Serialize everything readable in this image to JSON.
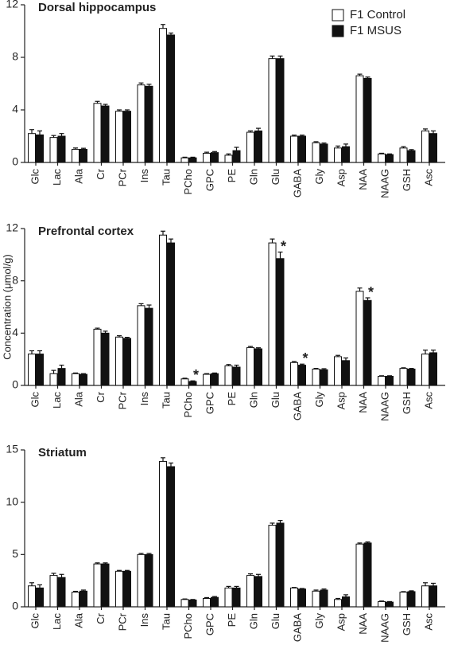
{
  "chart_data": [
    {
      "type": "bar",
      "title": "Dorsal hippocampus",
      "categories": [
        "Glc",
        "Lac",
        "Ala",
        "Cr",
        "PCr",
        "Ins",
        "Tau",
        "PCho",
        "GPC",
        "PE",
        "Gln",
        "Glu",
        "GABA",
        "Gly",
        "Asp",
        "NAA",
        "NAAG",
        "GSH",
        "Asc"
      ],
      "series": [
        {
          "name": "F1 Control",
          "color": "#ffffff",
          "values": [
            2.2,
            1.9,
            1.0,
            4.5,
            3.9,
            5.9,
            10.2,
            0.35,
            0.7,
            0.55,
            2.3,
            7.9,
            2.0,
            1.5,
            1.1,
            6.6,
            0.65,
            1.1,
            2.4
          ],
          "errors": [
            0.3,
            0.15,
            0.1,
            0.15,
            0.1,
            0.15,
            0.3,
            0.05,
            0.08,
            0.1,
            0.1,
            0.2,
            0.08,
            0.08,
            0.15,
            0.12,
            0.05,
            0.1,
            0.15
          ]
        },
        {
          "name": "F1 MSUS",
          "color": "#111111",
          "values": [
            2.1,
            2.0,
            1.0,
            4.3,
            3.9,
            5.8,
            9.7,
            0.35,
            0.75,
            0.9,
            2.4,
            7.9,
            2.0,
            1.4,
            1.2,
            6.4,
            0.6,
            0.9,
            2.2
          ],
          "errors": [
            0.3,
            0.2,
            0.08,
            0.12,
            0.1,
            0.15,
            0.15,
            0.05,
            0.08,
            0.25,
            0.2,
            0.2,
            0.08,
            0.08,
            0.2,
            0.1,
            0.05,
            0.08,
            0.2
          ]
        }
      ],
      "ylim": [
        0,
        12
      ],
      "yticks": [
        0,
        4,
        8,
        12
      ],
      "legend": "upper right"
    },
    {
      "type": "bar",
      "title": "Prefrontal cortex",
      "ylabel": "Concentration (μmol/g)",
      "categories": [
        "Glc",
        "Lac",
        "Ala",
        "Cr",
        "PCr",
        "Ins",
        "Tau",
        "PCho",
        "GPC",
        "PE",
        "Gln",
        "Glu",
        "GABA",
        "Gly",
        "Asp",
        "NAA",
        "NAAG",
        "GSH",
        "Asc"
      ],
      "series": [
        {
          "color": "#ffffff",
          "values": [
            2.4,
            0.9,
            0.9,
            4.3,
            3.7,
            6.1,
            11.5,
            0.5,
            0.85,
            1.5,
            2.9,
            10.9,
            1.75,
            1.25,
            2.2,
            7.2,
            0.7,
            1.3,
            2.4
          ],
          "errors": [
            0.25,
            0.25,
            0.05,
            0.08,
            0.1,
            0.15,
            0.3,
            0.05,
            0.05,
            0.1,
            0.08,
            0.3,
            0.08,
            0.05,
            0.1,
            0.25,
            0.04,
            0.05,
            0.3
          ]
        },
        {
          "color": "#111111",
          "values": [
            2.4,
            1.3,
            0.85,
            4.0,
            3.6,
            5.9,
            10.9,
            0.3,
            0.9,
            1.4,
            2.8,
            9.7,
            1.55,
            1.2,
            1.9,
            6.5,
            0.7,
            1.25,
            2.5
          ],
          "errors": [
            0.25,
            0.25,
            0.05,
            0.15,
            0.08,
            0.25,
            0.3,
            0.05,
            0.05,
            0.15,
            0.08,
            0.5,
            0.08,
            0.08,
            0.2,
            0.2,
            0.04,
            0.05,
            0.2
          ],
          "annotations": [
            null,
            null,
            null,
            null,
            null,
            null,
            null,
            "*",
            null,
            null,
            null,
            "*",
            "*",
            null,
            null,
            "*",
            null,
            null,
            null
          ]
        }
      ],
      "ylim": [
        0,
        12
      ],
      "yticks": [
        0,
        4,
        8,
        12
      ]
    },
    {
      "type": "bar",
      "title": "Striatum",
      "categories": [
        "Glc",
        "Lac",
        "Ala",
        "Cr",
        "PCr",
        "Ins",
        "Tau",
        "PCho",
        "GPC",
        "PE",
        "Gln",
        "Glu",
        "GABA",
        "Gly",
        "Asp",
        "NAA",
        "NAAG",
        "GSH",
        "Asc"
      ],
      "series": [
        {
          "color": "#ffffff",
          "values": [
            2.0,
            3.0,
            1.4,
            4.1,
            3.4,
            5.0,
            13.9,
            0.7,
            0.8,
            1.8,
            3.0,
            7.8,
            1.8,
            1.5,
            0.7,
            6.0,
            0.5,
            1.4,
            2.0
          ],
          "errors": [
            0.3,
            0.2,
            0.08,
            0.1,
            0.08,
            0.1,
            0.35,
            0.05,
            0.08,
            0.15,
            0.15,
            0.2,
            0.05,
            0.1,
            0.1,
            0.1,
            0.05,
            0.05,
            0.3
          ]
        },
        {
          "color": "#111111",
          "values": [
            1.8,
            2.8,
            1.5,
            4.1,
            3.4,
            5.0,
            13.4,
            0.65,
            0.9,
            1.8,
            2.9,
            8.0,
            1.7,
            1.6,
            0.95,
            6.1,
            0.45,
            1.45,
            2.0
          ],
          "errors": [
            0.3,
            0.3,
            0.1,
            0.1,
            0.08,
            0.1,
            0.35,
            0.05,
            0.08,
            0.15,
            0.2,
            0.25,
            0.05,
            0.1,
            0.2,
            0.1,
            0.05,
            0.08,
            0.25
          ]
        }
      ],
      "ylim": [
        0,
        15
      ],
      "yticks": [
        0,
        5,
        10,
        15
      ]
    }
  ]
}
